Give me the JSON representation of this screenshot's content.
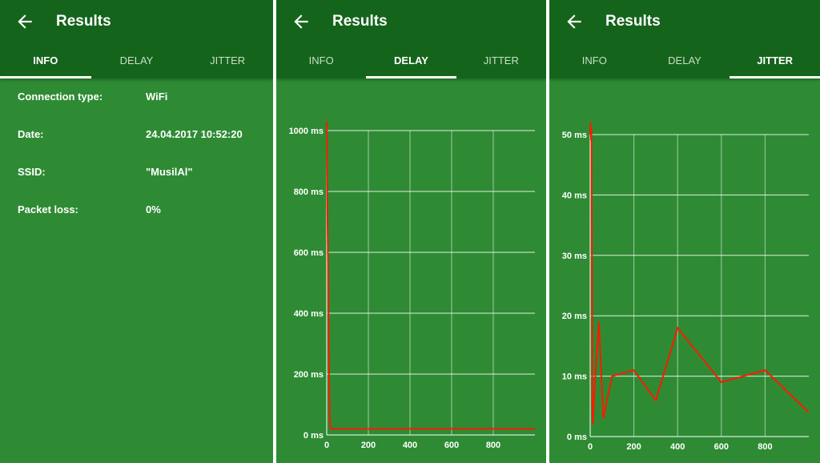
{
  "app": {
    "title": "Results",
    "back_icon": "arrow-left-icon"
  },
  "tabs": [
    "INFO",
    "DELAY",
    "JITTER"
  ],
  "colors": {
    "appbar": "#15641b",
    "panel": "#2e8b34",
    "line": "#ff1a00"
  },
  "info": {
    "rows": [
      {
        "label": "Connection type:",
        "value": "WiFi"
      },
      {
        "label": "Date:",
        "value": "24.04.2017 10:52:20"
      },
      {
        "label": "SSID:",
        "value": "\"MusilAl\""
      },
      {
        "label": "Packet loss:",
        "value": "0%"
      }
    ]
  },
  "chart_data": [
    {
      "type": "line",
      "tab": "DELAY",
      "x_ticks": [
        "0",
        "200",
        "400",
        "600",
        "800"
      ],
      "y_ticks": [
        "0 ms",
        "200 ms",
        "400 ms",
        "600 ms",
        "800 ms",
        "1000 ms"
      ],
      "xlim": [
        0,
        1000
      ],
      "ylim": [
        0,
        1000
      ],
      "grid": true,
      "series": [
        {
          "x": [
            0,
            2,
            4,
            8,
            12,
            16,
            20,
            300,
            600,
            1000
          ],
          "y": [
            1030,
            900,
            700,
            400,
            150,
            30,
            20,
            20,
            20,
            20
          ]
        }
      ]
    },
    {
      "type": "line",
      "tab": "JITTER",
      "x_ticks": [
        "0",
        "200",
        "400",
        "600",
        "800"
      ],
      "y_ticks": [
        "0 ms",
        "10 ms",
        "20 ms",
        "30 ms",
        "40 ms",
        "50 ms"
      ],
      "xlim": [
        0,
        1000
      ],
      "ylim": [
        0,
        50
      ],
      "grid": true,
      "series": [
        {
          "x": [
            0,
            2,
            4,
            6,
            8,
            10,
            12,
            20,
            40,
            60,
            100,
            200,
            300,
            400,
            600,
            800,
            1000
          ],
          "y": [
            50,
            52,
            49,
            51,
            30,
            5,
            2,
            8,
            19,
            3,
            10,
            11,
            6,
            18,
            9,
            11,
            4
          ]
        }
      ]
    }
  ]
}
